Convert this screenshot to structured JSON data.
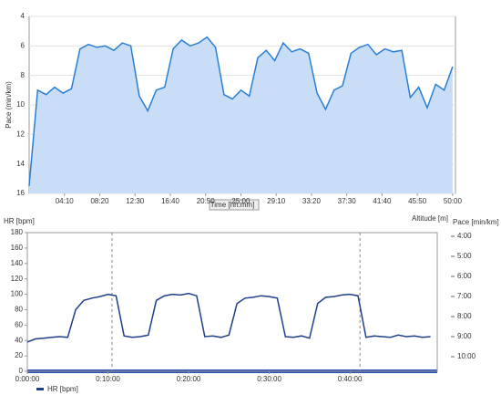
{
  "chart_data": [
    {
      "type": "area",
      "ylabel": "Pace (min/km)",
      "button": "Time [hh:mm]",
      "x": [
        0,
        60,
        120,
        180,
        240,
        300,
        360,
        420,
        480,
        540,
        600,
        660,
        720,
        780,
        840,
        900,
        960,
        1020,
        1080,
        1140,
        1200,
        1260,
        1320,
        1380,
        1440,
        1500,
        1560,
        1620,
        1680,
        1740,
        1800,
        1860,
        1920,
        1980,
        2040,
        2100,
        2160,
        2220,
        2280,
        2340,
        2400,
        2460,
        2520,
        2580,
        2640,
        2700,
        2760,
        2820,
        2880,
        2940,
        3000
      ],
      "series": [
        {
          "name": "Pace",
          "color": "#2a7fd4",
          "values": [
            15.5,
            9.0,
            9.3,
            8.8,
            9.2,
            8.9,
            6.2,
            5.9,
            6.1,
            6.0,
            6.3,
            5.8,
            6.0,
            9.4,
            10.4,
            9.0,
            8.8,
            6.2,
            5.6,
            6.0,
            5.8,
            5.4,
            6.1,
            9.3,
            9.6,
            9.0,
            9.4,
            6.8,
            6.3,
            7.0,
            5.8,
            6.4,
            6.2,
            6.5,
            9.2,
            10.3,
            9.0,
            8.7,
            6.5,
            6.1,
            5.9,
            6.6,
            6.2,
            6.4,
            6.3,
            9.5,
            8.8,
            10.2,
            8.6,
            9.0,
            7.4
          ]
        }
      ],
      "xlim": [
        0,
        3020
      ],
      "xticks": [
        {
          "value": 250,
          "label": "04:10"
        },
        {
          "value": 500,
          "label": "08:20"
        },
        {
          "value": 750,
          "label": "12:30"
        },
        {
          "value": 1000,
          "label": "16:40"
        },
        {
          "value": 1250,
          "label": "20:50"
        },
        {
          "value": 1500,
          "label": "25:00"
        },
        {
          "value": 1750,
          "label": "29:10"
        },
        {
          "value": 2000,
          "label": "33:20"
        },
        {
          "value": 2250,
          "label": "37:30"
        },
        {
          "value": 2500,
          "label": "41:40"
        },
        {
          "value": 2750,
          "label": "45:50"
        },
        {
          "value": 3000,
          "label": "50:00"
        }
      ],
      "ylim": [
        4,
        16
      ],
      "yticks": [
        4,
        6,
        8,
        10,
        12,
        14,
        16
      ],
      "y_inverted": true,
      "grid": true
    },
    {
      "type": "line",
      "ylabel": "HR [bpm]",
      "y2label": "Altitude [m]",
      "y3label": "Pace [min/km]",
      "x": [
        0,
        60,
        120,
        180,
        240,
        300,
        360,
        420,
        480,
        540,
        600,
        660,
        720,
        780,
        840,
        900,
        960,
        1020,
        1080,
        1140,
        1200,
        1260,
        1320,
        1380,
        1440,
        1500,
        1560,
        1620,
        1680,
        1740,
        1800,
        1860,
        1920,
        1980,
        2040,
        2100,
        2160,
        2220,
        2280,
        2340,
        2400,
        2460,
        2520,
        2580,
        2640,
        2700,
        2760,
        2820,
        2880,
        2940,
        3000
      ],
      "series": [
        {
          "name": "HR [bpm]",
          "color": "#1f3f8a",
          "values": [
            38,
            42,
            43,
            44,
            45,
            44,
            80,
            92,
            95,
            97,
            100,
            98,
            46,
            44,
            45,
            47,
            92,
            98,
            100,
            99,
            101,
            98,
            45,
            46,
            44,
            47,
            88,
            95,
            96,
            98,
            97,
            95,
            45,
            44,
            46,
            43,
            88,
            96,
            97,
            99,
            100,
            98,
            44,
            46,
            45,
            44,
            47,
            45,
            46,
            44,
            45
          ]
        }
      ],
      "laps": [
        630,
        2475
      ],
      "xlim": [
        0,
        3050
      ],
      "xticks": [
        {
          "value": 0,
          "label": "0:00:00"
        },
        {
          "value": 600,
          "label": "0:10:00"
        },
        {
          "value": 1200,
          "label": "0:20:00"
        },
        {
          "value": 1800,
          "label": "0:30:00"
        },
        {
          "value": 2400,
          "label": "0:40:00"
        }
      ],
      "ylim": [
        0,
        180
      ],
      "yticks": [
        0,
        20,
        40,
        60,
        80,
        100,
        120,
        140,
        160,
        180
      ],
      "y2lim": [
        4,
        10
      ],
      "y2ticks": [
        {
          "value": 4,
          "label": "4:00"
        },
        {
          "value": 5,
          "label": "5:00"
        },
        {
          "value": 6,
          "label": "6:00"
        },
        {
          "value": 7,
          "label": "7:00"
        },
        {
          "value": 8,
          "label": "8:00"
        },
        {
          "value": 9,
          "label": "9:00"
        },
        {
          "value": 10,
          "label": "10:00"
        }
      ],
      "grid": false
    }
  ]
}
